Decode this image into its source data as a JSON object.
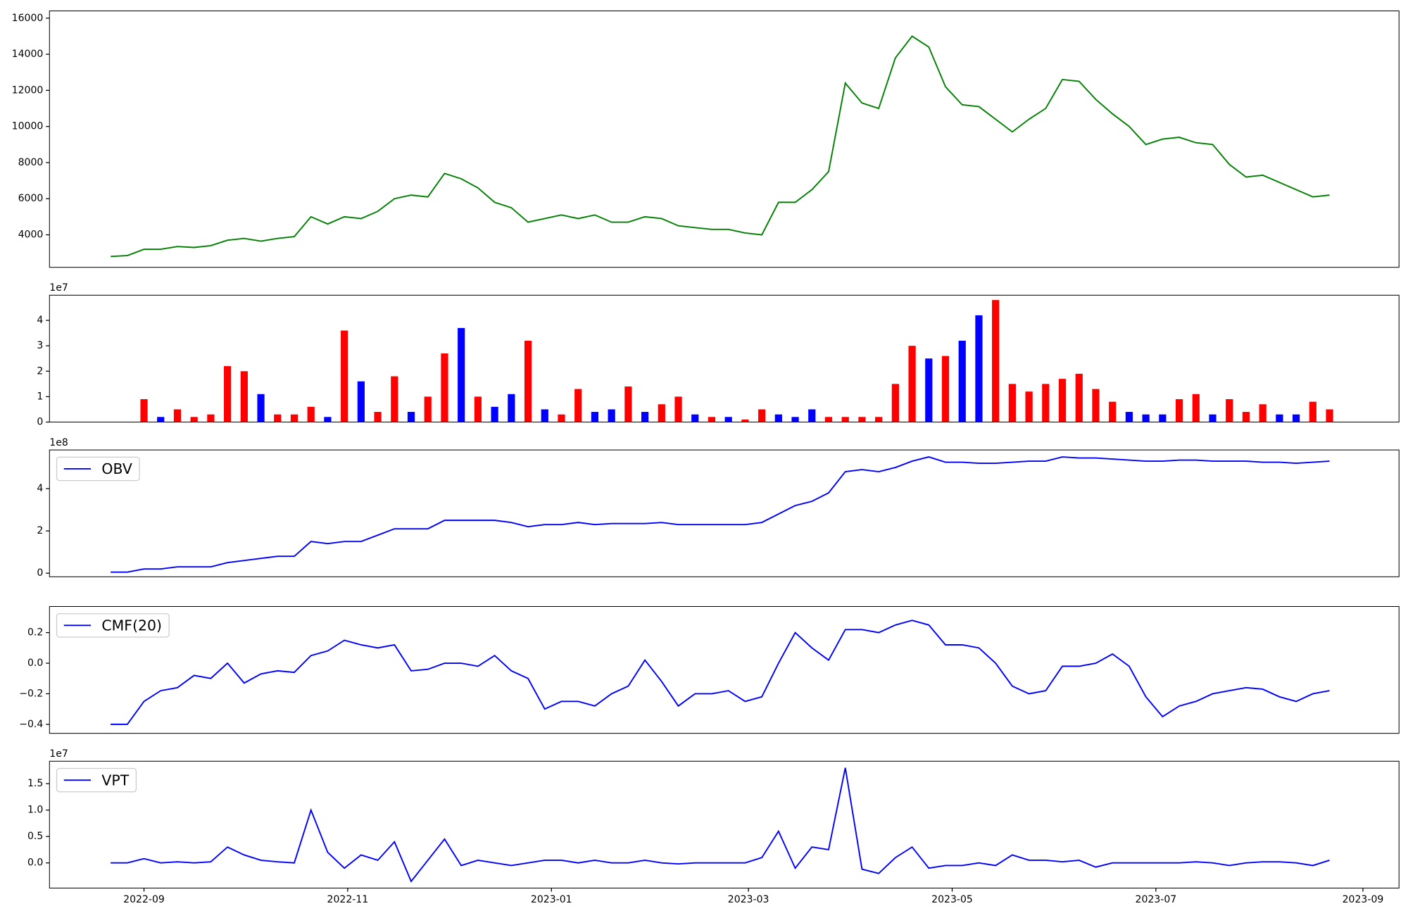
{
  "chart_data": [
    {
      "type": "line",
      "x": [
        19226,
        19231,
        19236,
        19241,
        19246,
        19251,
        19256,
        19261,
        19266,
        19271,
        19276,
        19281,
        19286,
        19291,
        19296,
        19301,
        19306,
        19311,
        19316,
        19321,
        19326,
        19331,
        19336,
        19341,
        19346,
        19351,
        19356,
        19361,
        19366,
        19371,
        19376,
        19381,
        19386,
        19391,
        19396,
        19401,
        19406,
        19411,
        19416,
        19421,
        19426,
        19431,
        19436,
        19441,
        19446,
        19451,
        19456,
        19461,
        19466,
        19471,
        19476,
        19481,
        19486,
        19491,
        19496,
        19501,
        19506,
        19511,
        19516,
        19521,
        19526,
        19531,
        19536,
        19541,
        19546,
        19551,
        19556,
        19561,
        19566,
        19571,
        19576,
        19581,
        19586,
        19591
      ],
      "series": [
        {
          "color": "green",
          "values": [
            2800,
            2850,
            3200,
            3200,
            3350,
            3300,
            3400,
            3700,
            3800,
            3650,
            3800,
            3900,
            5000,
            4600,
            5000,
            4900,
            5300,
            6000,
            6200,
            6100,
            7400,
            7100,
            6600,
            5800,
            5500,
            4700,
            4900,
            5100,
            4900,
            5100,
            4700,
            4700,
            5000,
            4900,
            4500,
            4400,
            4300,
            4300,
            4100,
            4000,
            5800,
            5800,
            6500,
            7500,
            12400,
            11300,
            11000,
            13800,
            15000,
            14400,
            12200,
            11200,
            11100,
            10400,
            9700,
            10400,
            11000,
            12600,
            12500,
            11500,
            10700,
            10000,
            9000,
            9300,
            9400,
            9100,
            9000,
            7900,
            7200,
            7300,
            6900,
            6500,
            6100,
            6200
          ]
        }
      ],
      "xlim": [
        19207.7,
        19611.8
      ],
      "ylim": [
        2200,
        16400
      ],
      "yticks": [
        4000,
        6000,
        8000,
        10000,
        12000,
        14000,
        16000
      ]
    },
    {
      "type": "bar",
      "x": [
        19226,
        19231,
        19236,
        19241,
        19246,
        19251,
        19256,
        19261,
        19266,
        19271,
        19276,
        19281,
        19286,
        19291,
        19296,
        19301,
        19306,
        19311,
        19316,
        19321,
        19326,
        19331,
        19336,
        19341,
        19346,
        19351,
        19356,
        19361,
        19366,
        19371,
        19376,
        19381,
        19386,
        19391,
        19396,
        19401,
        19406,
        19411,
        19416,
        19421,
        19426,
        19431,
        19436,
        19441,
        19446,
        19451,
        19456,
        19461,
        19466,
        19471,
        19476,
        19481,
        19486,
        19491,
        19496,
        19501,
        19506,
        19511,
        19516,
        19521,
        19526,
        19531,
        19536,
        19541,
        19546,
        19551,
        19556,
        19561,
        19566,
        19571,
        19576,
        19581,
        19586,
        19591
      ],
      "values": [
        0,
        0,
        9000000,
        2000000,
        5000000,
        2000000,
        3000000,
        22000000,
        20000000,
        11000000,
        3000000,
        3000000,
        6000000,
        2000000,
        36000000,
        16000000,
        4000000,
        18000000,
        4000000,
        10000000,
        27000000,
        37000000,
        10000000,
        6000000,
        11000000,
        32000000,
        5000000,
        3000000,
        13000000,
        4000000,
        5000000,
        14000000,
        4000000,
        7000000,
        10000000,
        3000000,
        2000000,
        2000000,
        1000000,
        5000000,
        3000000,
        2000000,
        5000000,
        2000000,
        2000000,
        2000000,
        2000000,
        15000000,
        30000000,
        25000000,
        26000000,
        32000000,
        42000000,
        48000000,
        15000000,
        12000000,
        15000000,
        17000000,
        19000000,
        13000000,
        8000000,
        4000000,
        3000000,
        3000000,
        9000000,
        11000000,
        3000000,
        9000000,
        4000000,
        7000000,
        3000000,
        3000000,
        8000000,
        5000000
      ],
      "colors": [
        "red",
        "red",
        "red",
        "blue",
        "red",
        "red",
        "red",
        "red",
        "red",
        "blue",
        "red",
        "red",
        "red",
        "blue",
        "red",
        "blue",
        "red",
        "red",
        "blue",
        "red",
        "red",
        "blue",
        "red",
        "blue",
        "blue",
        "red",
        "blue",
        "red",
        "red",
        "blue",
        "blue",
        "red",
        "blue",
        "red",
        "red",
        "blue",
        "red",
        "blue",
        "red",
        "red",
        "blue",
        "blue",
        "blue",
        "red",
        "red",
        "red",
        "red",
        "red",
        "red",
        "blue",
        "red",
        "blue",
        "blue",
        "red",
        "red",
        "red",
        "red",
        "red",
        "red",
        "red",
        "red",
        "blue",
        "blue",
        "blue",
        "red",
        "red",
        "blue",
        "red",
        "red",
        "red",
        "blue",
        "blue",
        "red",
        "red"
      ],
      "offset_label": "1e7",
      "xlim": [
        19207.7,
        19611.8
      ],
      "ylim": [
        0,
        49900000
      ],
      "yticks": [
        0,
        {
          "value": 10000000,
          "label": "1"
        },
        {
          "value": 20000000,
          "label": "2"
        },
        {
          "value": 30000000,
          "label": "3"
        },
        {
          "value": 40000000,
          "label": "4"
        }
      ]
    },
    {
      "type": "line",
      "x": [
        19226,
        19231,
        19236,
        19241,
        19246,
        19251,
        19256,
        19261,
        19266,
        19271,
        19276,
        19281,
        19286,
        19291,
        19296,
        19301,
        19306,
        19311,
        19316,
        19321,
        19326,
        19331,
        19336,
        19341,
        19346,
        19351,
        19356,
        19361,
        19366,
        19371,
        19376,
        19381,
        19386,
        19391,
        19396,
        19401,
        19406,
        19411,
        19416,
        19421,
        19426,
        19431,
        19436,
        19441,
        19446,
        19451,
        19456,
        19461,
        19466,
        19471,
        19476,
        19481,
        19486,
        19491,
        19496,
        19501,
        19506,
        19511,
        19516,
        19521,
        19526,
        19531,
        19536,
        19541,
        19546,
        19551,
        19556,
        19561,
        19566,
        19571,
        19576,
        19581,
        19586,
        19591
      ],
      "series": [
        {
          "name": "OBV",
          "color": "blue",
          "values": [
            5000000,
            5000000,
            20000000,
            20000000,
            30000000,
            30000000,
            30000000,
            50000000,
            60000000,
            70000000,
            80000000,
            80000000,
            150000000,
            140000000,
            150000000,
            150000000,
            180000000,
            210000000,
            210000000,
            210000000,
            250000000,
            250000000,
            250000000,
            250000000,
            240000000,
            220000000,
            230000000,
            230000000,
            240000000,
            230000000,
            235000000,
            235000000,
            235000000,
            240000000,
            230000000,
            230000000,
            230000000,
            230000000,
            230000000,
            240000000,
            280000000,
            320000000,
            340000000,
            380000000,
            480000000,
            490000000,
            480000000,
            500000000,
            530000000,
            550000000,
            525000000,
            525000000,
            520000000,
            520000000,
            525000000,
            530000000,
            530000000,
            550000000,
            545000000,
            545000000,
            540000000,
            535000000,
            530000000,
            530000000,
            535000000,
            535000000,
            530000000,
            530000000,
            530000000,
            525000000,
            525000000,
            520000000,
            525000000,
            530000000
          ]
        }
      ],
      "offset_label": "1e8",
      "legend": "upper left",
      "xlim": [
        19207.7,
        19611.8
      ],
      "ylim": [
        -17000000,
        583000000
      ],
      "yticks": [
        0,
        {
          "value": 200000000,
          "label": "2"
        },
        {
          "value": 400000000,
          "label": "4"
        }
      ]
    },
    {
      "type": "line",
      "x": [
        19226,
        19231,
        19236,
        19241,
        19246,
        19251,
        19256,
        19261,
        19266,
        19271,
        19276,
        19281,
        19286,
        19291,
        19296,
        19301,
        19306,
        19311,
        19316,
        19321,
        19326,
        19331,
        19336,
        19341,
        19346,
        19351,
        19356,
        19361,
        19366,
        19371,
        19376,
        19381,
        19386,
        19391,
        19396,
        19401,
        19406,
        19411,
        19416,
        19421,
        19426,
        19431,
        19436,
        19441,
        19446,
        19451,
        19456,
        19461,
        19466,
        19471,
        19476,
        19481,
        19486,
        19491,
        19496,
        19501,
        19506,
        19511,
        19516,
        19521,
        19526,
        19531,
        19536,
        19541,
        19546,
        19551,
        19556,
        19561,
        19566,
        19571,
        19576,
        19581,
        19586,
        19591
      ],
      "series": [
        {
          "name": "CMF(20)",
          "color": "blue",
          "values": [
            -0.4,
            -0.4,
            -0.25,
            -0.18,
            -0.16,
            -0.08,
            -0.1,
            0,
            -0.13,
            -0.07,
            -0.05,
            -0.06,
            0.05,
            0.08,
            0.15,
            0.12,
            0.1,
            0.12,
            -0.05,
            -0.04,
            0,
            0,
            -0.02,
            0.05,
            -0.05,
            -0.1,
            -0.3,
            -0.25,
            -0.25,
            -0.28,
            -0.2,
            -0.15,
            0.02,
            -0.12,
            -0.28,
            -0.2,
            -0.2,
            -0.18,
            -0.25,
            -0.22,
            0,
            0.2,
            0.1,
            0.02,
            0.22,
            0.22,
            0.2,
            0.25,
            0.28,
            0.25,
            0.12,
            0.12,
            0.1,
            0,
            -0.15,
            -0.2,
            -0.18,
            -0.02,
            -0.02,
            0,
            0.06,
            -0.02,
            -0.22,
            -0.35,
            -0.28,
            -0.25,
            -0.2,
            -0.18,
            -0.16,
            -0.17,
            -0.22,
            -0.25,
            -0.2,
            -0.18
          ]
        }
      ],
      "legend": "upper left",
      "xlim": [
        19207.7,
        19611.8
      ],
      "ylim": [
        -0.459,
        0.371
      ],
      "yticks": [
        {
          "value": -0.4,
          "label": "−0.4"
        },
        {
          "value": -0.2,
          "label": "−0.2"
        },
        {
          "value": 0,
          "label": "0.0"
        },
        0.2
      ]
    },
    {
      "type": "line",
      "x": [
        19226,
        19231,
        19236,
        19241,
        19246,
        19251,
        19256,
        19261,
        19266,
        19271,
        19276,
        19281,
        19286,
        19291,
        19296,
        19301,
        19306,
        19311,
        19316,
        19321,
        19326,
        19331,
        19336,
        19341,
        19346,
        19351,
        19356,
        19361,
        19366,
        19371,
        19376,
        19381,
        19386,
        19391,
        19396,
        19401,
        19406,
        19411,
        19416,
        19421,
        19426,
        19431,
        19436,
        19441,
        19446,
        19451,
        19456,
        19461,
        19466,
        19471,
        19476,
        19481,
        19486,
        19491,
        19496,
        19501,
        19506,
        19511,
        19516,
        19521,
        19526,
        19531,
        19536,
        19541,
        19546,
        19551,
        19556,
        19561,
        19566,
        19571,
        19576,
        19581,
        19586,
        19591
      ],
      "series": [
        {
          "name": "VPT",
          "color": "blue",
          "values": [
            0,
            0,
            800000,
            0,
            200000,
            0,
            200000,
            3000000,
            1500000,
            500000,
            200000,
            0,
            10000000,
            2000000,
            -1000000,
            1500000,
            500000,
            4000000,
            -3500000,
            500000,
            4500000,
            -500000,
            500000,
            0,
            -500000,
            0,
            500000,
            500000,
            0,
            500000,
            0,
            0,
            500000,
            0,
            -200000,
            0,
            0,
            0,
            0,
            1000000,
            6000000,
            -1000000,
            3000000,
            2500000,
            18000000,
            -1200000,
            -2000000,
            1000000,
            3000000,
            -1000000,
            -500000,
            -500000,
            0,
            -500000,
            1500000,
            500000,
            500000,
            200000,
            500000,
            -800000,
            0,
            0,
            0,
            0,
            0,
            200000,
            0,
            -500000,
            0,
            200000,
            200000,
            0,
            -500000,
            500000
          ]
        }
      ],
      "offset_label": "1e7",
      "legend": "upper left",
      "xlim": [
        19207.7,
        19611.8
      ],
      "ylim": [
        -4770000,
        19250000
      ],
      "yticks": [
        {
          "value": 0,
          "label": "0.0"
        },
        {
          "value": 5000000,
          "label": "0.5"
        },
        {
          "value": 10000000,
          "label": "1.0"
        },
        {
          "value": 15000000,
          "label": "1.5"
        }
      ],
      "xticks": [
        {
          "value": 19236,
          "label": "2022-09"
        },
        {
          "value": 19297,
          "label": "2022-11"
        },
        {
          "value": 19358,
          "label": "2023-01"
        },
        {
          "value": 19417,
          "label": "2023-03"
        },
        {
          "value": 19478,
          "label": "2023-05"
        },
        {
          "value": 19539,
          "label": "2023-07"
        },
        {
          "value": 19601,
          "label": "2023-09"
        }
      ]
    }
  ]
}
